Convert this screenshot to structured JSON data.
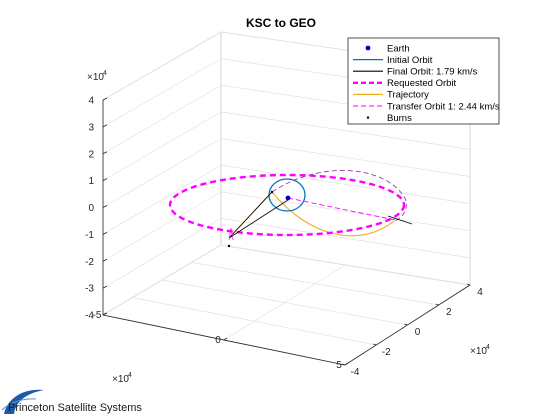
{
  "chart_data": {
    "type": "line",
    "title": "KSC to GEO",
    "projection": "3d",
    "exponent_base": "×10",
    "exponent_power": "4",
    "axes": {
      "x": {
        "range": [
          -5,
          5
        ],
        "ticks": [
          "-5",
          "0",
          "5"
        ]
      },
      "y": {
        "range": [
          -4,
          4
        ],
        "ticks": [
          "-4",
          "-2",
          "0",
          "2",
          "4"
        ]
      },
      "z": {
        "range": [
          -4,
          4
        ],
        "ticks": [
          "-4",
          "-3",
          "-2",
          "-1",
          "0",
          "1",
          "2",
          "3",
          "4"
        ]
      }
    },
    "grid": true,
    "legend": {
      "placement": "top-right",
      "entries": [
        {
          "name": "Earth",
          "color": "#0000cc",
          "style": "marker-dot"
        },
        {
          "name": "Initial Orbit",
          "color": "#0072bd",
          "style": "solid"
        },
        {
          "name": "Final Orbit: 1.79 km/s",
          "color": "#000000",
          "style": "solid"
        },
        {
          "name": "Requested Orbit",
          "color": "#ff00ff",
          "style": "dashed-thick"
        },
        {
          "name": "Trajectory",
          "color": "#edb120",
          "style": "solid"
        },
        {
          "name": "Transfer Orbit 1: 2.44 km/s",
          "color": "#ff00ff",
          "style": "dashed-thin"
        },
        {
          "name": "Burns",
          "color": "#000000",
          "style": "marker-point"
        }
      ]
    },
    "series": [
      {
        "name": "Requested Orbit",
        "shape": "circle",
        "radius": 4.2,
        "center": [
          0,
          0,
          0
        ]
      },
      {
        "name": "Initial Orbit",
        "shape": "circle",
        "radius": 0.7,
        "center": [
          0,
          0,
          0
        ]
      },
      {
        "name": "Earth",
        "points": [
          [
            0,
            0,
            0
          ]
        ]
      }
    ]
  },
  "branding": {
    "name": "Princeton Satellite Systems",
    "color": "#1f5aa6"
  }
}
